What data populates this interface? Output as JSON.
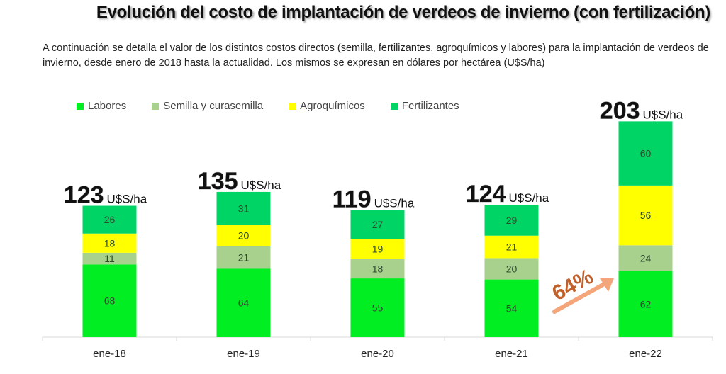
{
  "header": {
    "title": "Evolución del costo de implantación de verdeos de invierno (con fertilización)",
    "description": "A continuación se detalla el valor de los distintos costos directos (semilla, fertilizantes, agroquímicos y labores) para la implantación de verdeos de invierno, desde enero de 2018 hasta la actualidad. Los mismos se expresan en dólares por hectárea (U$S/ha)"
  },
  "chart_data": {
    "type": "bar",
    "stacked": true,
    "title": "Evolución del costo de implantación de verdeos de invierno (con fertilización)",
    "xlabel": "",
    "ylabel": "",
    "unit": "U$S/ha",
    "categories": [
      "ene-18",
      "ene-19",
      "ene-20",
      "ene-21",
      "ene-22"
    ],
    "series": [
      {
        "name": "Labores",
        "color": "#00ee22",
        "values": [
          68,
          64,
          55,
          54,
          62
        ]
      },
      {
        "name": "Semilla y curasemilla",
        "color": "#a9d18e",
        "values": [
          11,
          21,
          18,
          20,
          24
        ]
      },
      {
        "name": "Agroquímicos",
        "color": "#ffff00",
        "values": [
          18,
          20,
          19,
          21,
          56
        ]
      },
      {
        "name": "Fertilizantes",
        "color": "#00d465",
        "values": [
          26,
          31,
          27,
          29,
          60
        ]
      }
    ],
    "totals": [
      123,
      135,
      119,
      124,
      203
    ],
    "legend_position": "top-left",
    "grid": false,
    "ylim": [
      0,
      210
    ],
    "annotation": {
      "text": "64%",
      "description": "arrow indicating increase toward ene-22",
      "color": "#c0602a",
      "arrow_color": "#f4a57a"
    }
  }
}
